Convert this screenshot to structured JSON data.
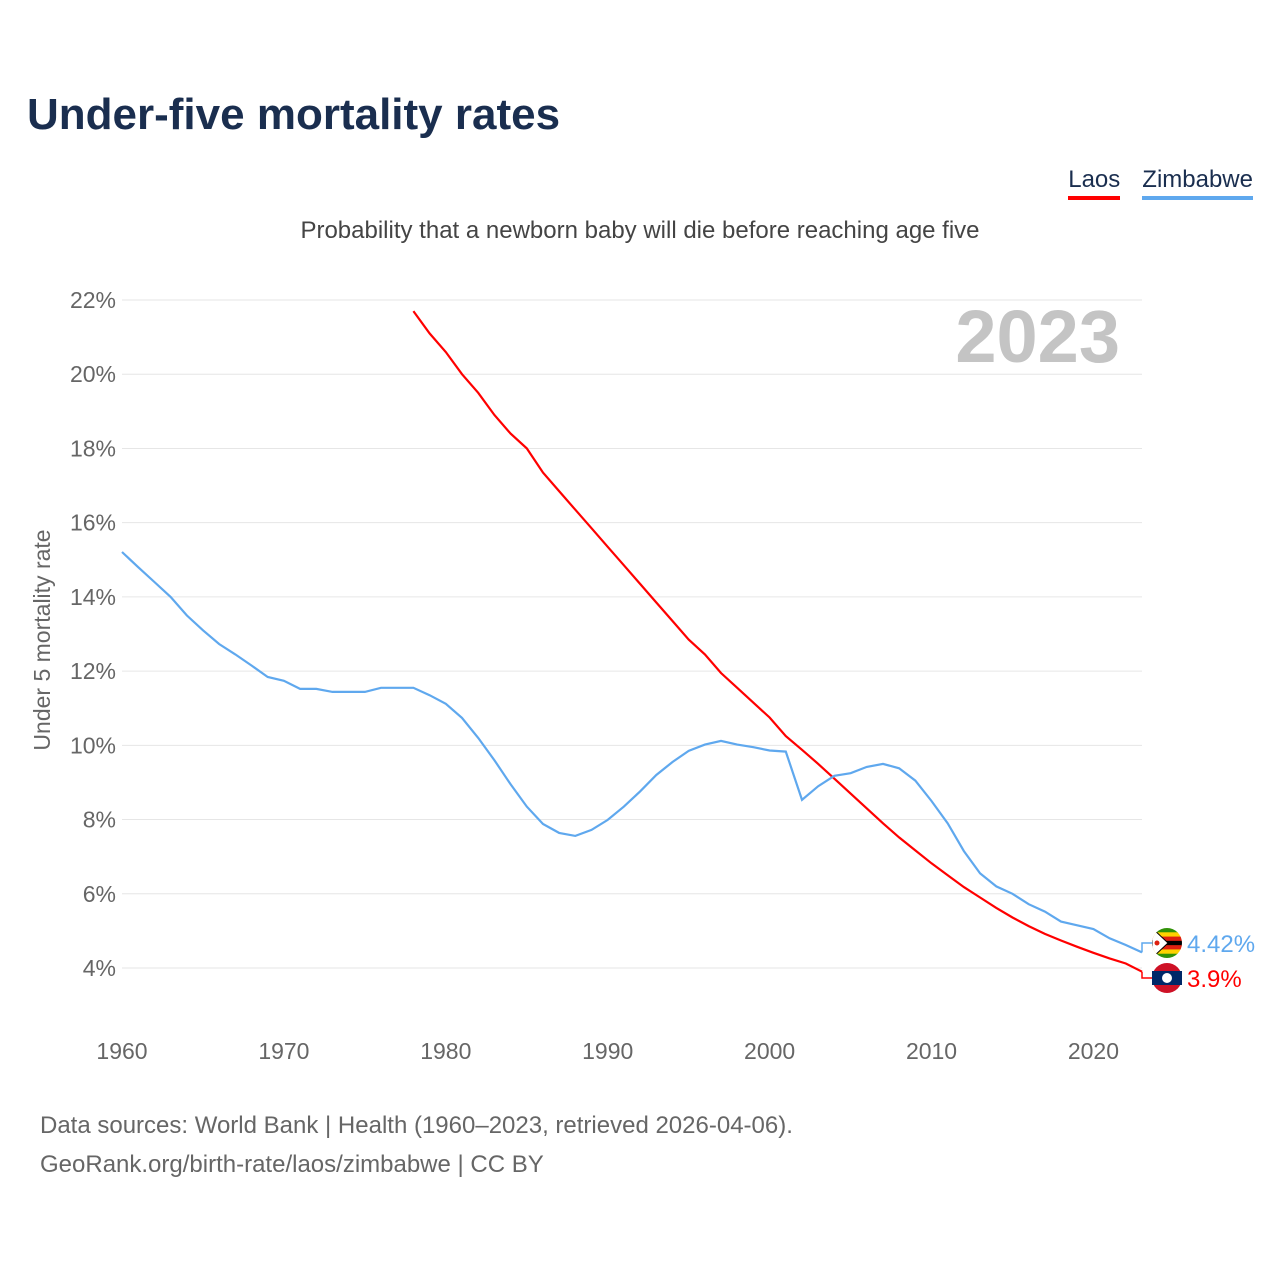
{
  "title": "Under-five mortality rates",
  "subtitle": "Probability that a newborn baby will die before reaching age five",
  "legend": [
    {
      "name": "Laos",
      "color": "#ff0000"
    },
    {
      "name": "Zimbabwe",
      "color": "#5fa8ee"
    }
  ],
  "footer": {
    "line1": "Data sources: World Bank | Health (1960–2023, retrieved 2026-04-06).",
    "line2": "GeoRank.org/birth-rate/laos/zimbabwe | CC BY"
  },
  "chart_data": {
    "type": "line",
    "title": "Under-five mortality rates",
    "ylabel": "Under 5 mortality rate",
    "xlabel": "",
    "year_label": "2023",
    "xlim": [
      1960,
      2023
    ],
    "ylim": [
      4,
      22
    ],
    "xticks": [
      "1960",
      "1970",
      "1980",
      "1990",
      "2000",
      "2010",
      "2020"
    ],
    "yticks": [
      "4%",
      "6%",
      "8%",
      "10%",
      "12%",
      "14%",
      "16%",
      "18%",
      "20%",
      "22%"
    ],
    "grid": true,
    "legend_position": "top-right",
    "series": [
      {
        "name": "Laos",
        "color": "#ff0000",
        "start_year": 1978,
        "end_label": "3.9%",
        "flag": "laos-flag",
        "values": [
          21.7,
          21.1,
          20.6,
          20.0,
          19.5,
          18.9,
          18.4,
          18.0,
          17.35,
          16.85,
          16.35,
          15.85,
          15.35,
          14.85,
          14.35,
          13.85,
          13.35,
          12.85,
          12.45,
          11.95,
          11.55,
          11.15,
          10.75,
          10.25,
          9.88,
          9.5,
          9.1,
          8.7,
          8.3,
          7.9,
          7.52,
          7.17,
          6.82,
          6.5,
          6.18,
          5.9,
          5.62,
          5.36,
          5.13,
          4.92,
          4.74,
          4.57,
          4.41,
          4.26,
          4.12,
          3.9
        ]
      },
      {
        "name": "Zimbabwe",
        "color": "#5fa8ee",
        "start_year": 1960,
        "end_label": "4.42%",
        "flag": "zimbabwe-flag",
        "values": [
          15.21,
          14.8,
          14.4,
          14.0,
          13.5,
          13.1,
          12.73,
          12.45,
          12.15,
          11.84,
          11.74,
          11.52,
          11.52,
          11.44,
          11.44,
          11.44,
          11.55,
          11.55,
          11.55,
          11.35,
          11.12,
          10.74,
          10.2,
          9.6,
          8.95,
          8.35,
          7.88,
          7.64,
          7.56,
          7.72,
          7.99,
          8.35,
          8.76,
          9.2,
          9.55,
          9.85,
          10.02,
          10.12,
          10.02,
          9.95,
          9.86,
          9.83,
          8.53,
          8.9,
          9.18,
          9.25,
          9.42,
          9.5,
          9.38,
          9.05,
          8.5,
          7.9,
          7.15,
          6.55,
          6.2,
          6.0,
          5.72,
          5.52,
          5.25,
          5.15,
          5.05,
          4.8,
          4.62,
          4.42
        ]
      }
    ]
  }
}
